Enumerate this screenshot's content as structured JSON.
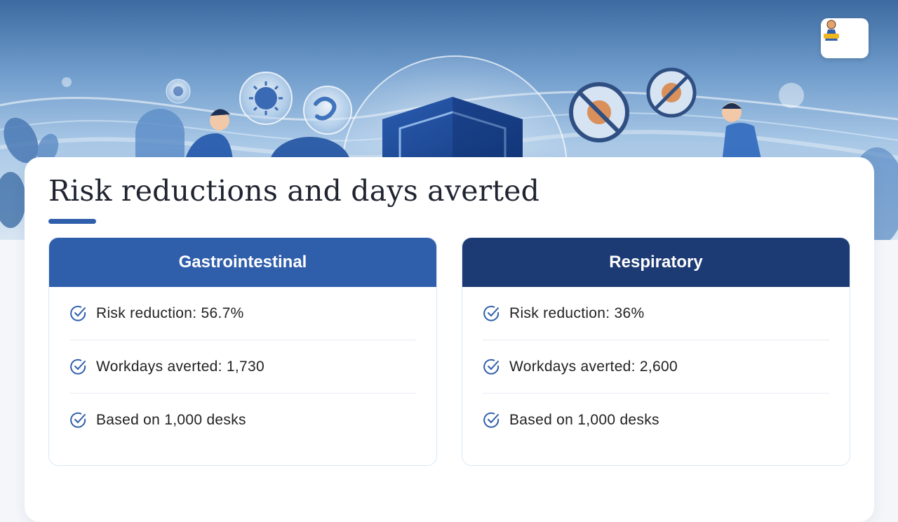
{
  "page": {
    "title": "Risk reductions and days averted"
  },
  "hero": {
    "logo_icon": "mascot-logo-icon",
    "illustration": [
      "virus-bubble-icon",
      "bacteria-bubble-icon",
      "shield-icon",
      "no-virus-icon",
      "person-figure"
    ]
  },
  "panels": [
    {
      "title": "Gastrointestinal",
      "color": "#2f5eab",
      "items": [
        {
          "icon": "check-circle-icon",
          "text": "Risk reduction: 56.7%"
        },
        {
          "icon": "check-circle-icon",
          "text": "Workdays averted: 1,730"
        },
        {
          "icon": "check-circle-icon",
          "text": "Based on 1,000 desks"
        }
      ]
    },
    {
      "title": "Respiratory",
      "color": "#1c3a73",
      "items": [
        {
          "icon": "check-circle-icon",
          "text": "Risk reduction: 36%"
        },
        {
          "icon": "check-circle-icon",
          "text": "Workdays averted: 2,600"
        },
        {
          "icon": "check-circle-icon",
          "text": "Based on 1,000 desks"
        }
      ]
    }
  ],
  "colors": {
    "accent": "#2f5eab",
    "dark_accent": "#1c3a73",
    "check": "#2f5eab"
  }
}
